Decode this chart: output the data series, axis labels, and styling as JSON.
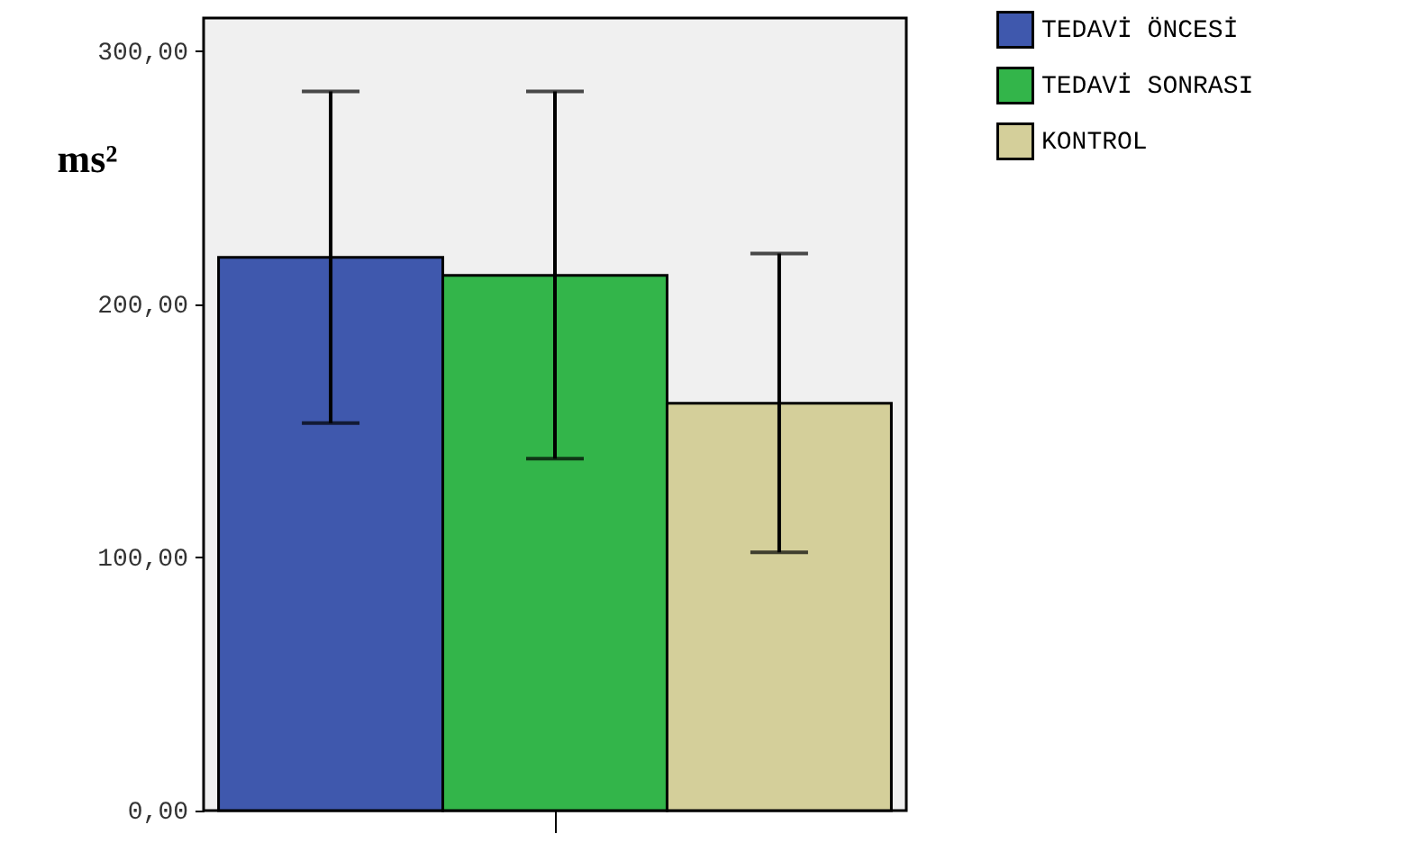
{
  "chart_data": {
    "type": "bar",
    "ylabel": "ms²",
    "categories": [
      null
    ],
    "series": [
      {
        "name": "TEDAVİ ÖNCESİ",
        "color": "#3f58ad",
        "values": [
          218.5
        ],
        "errors": [
          [
            153,
            284
          ]
        ]
      },
      {
        "name": "TEDAVİ SONRASI",
        "color": "#33b54a",
        "values": [
          211.4
        ],
        "errors": [
          [
            139,
            284
          ]
        ]
      },
      {
        "name": "KONTROL",
        "color": "#d4cf9a",
        "values": [
          160.9
        ],
        "errors": [
          [
            102,
            220
          ]
        ]
      }
    ],
    "ylim": [
      0,
      313
    ],
    "yticks": [
      {
        "value": 0,
        "label": "0,00"
      },
      {
        "value": 100,
        "label": "100,00"
      },
      {
        "value": 200,
        "label": "200,00"
      },
      {
        "value": 300,
        "label": "300,00"
      }
    ],
    "grid": false,
    "legend": "top right"
  }
}
